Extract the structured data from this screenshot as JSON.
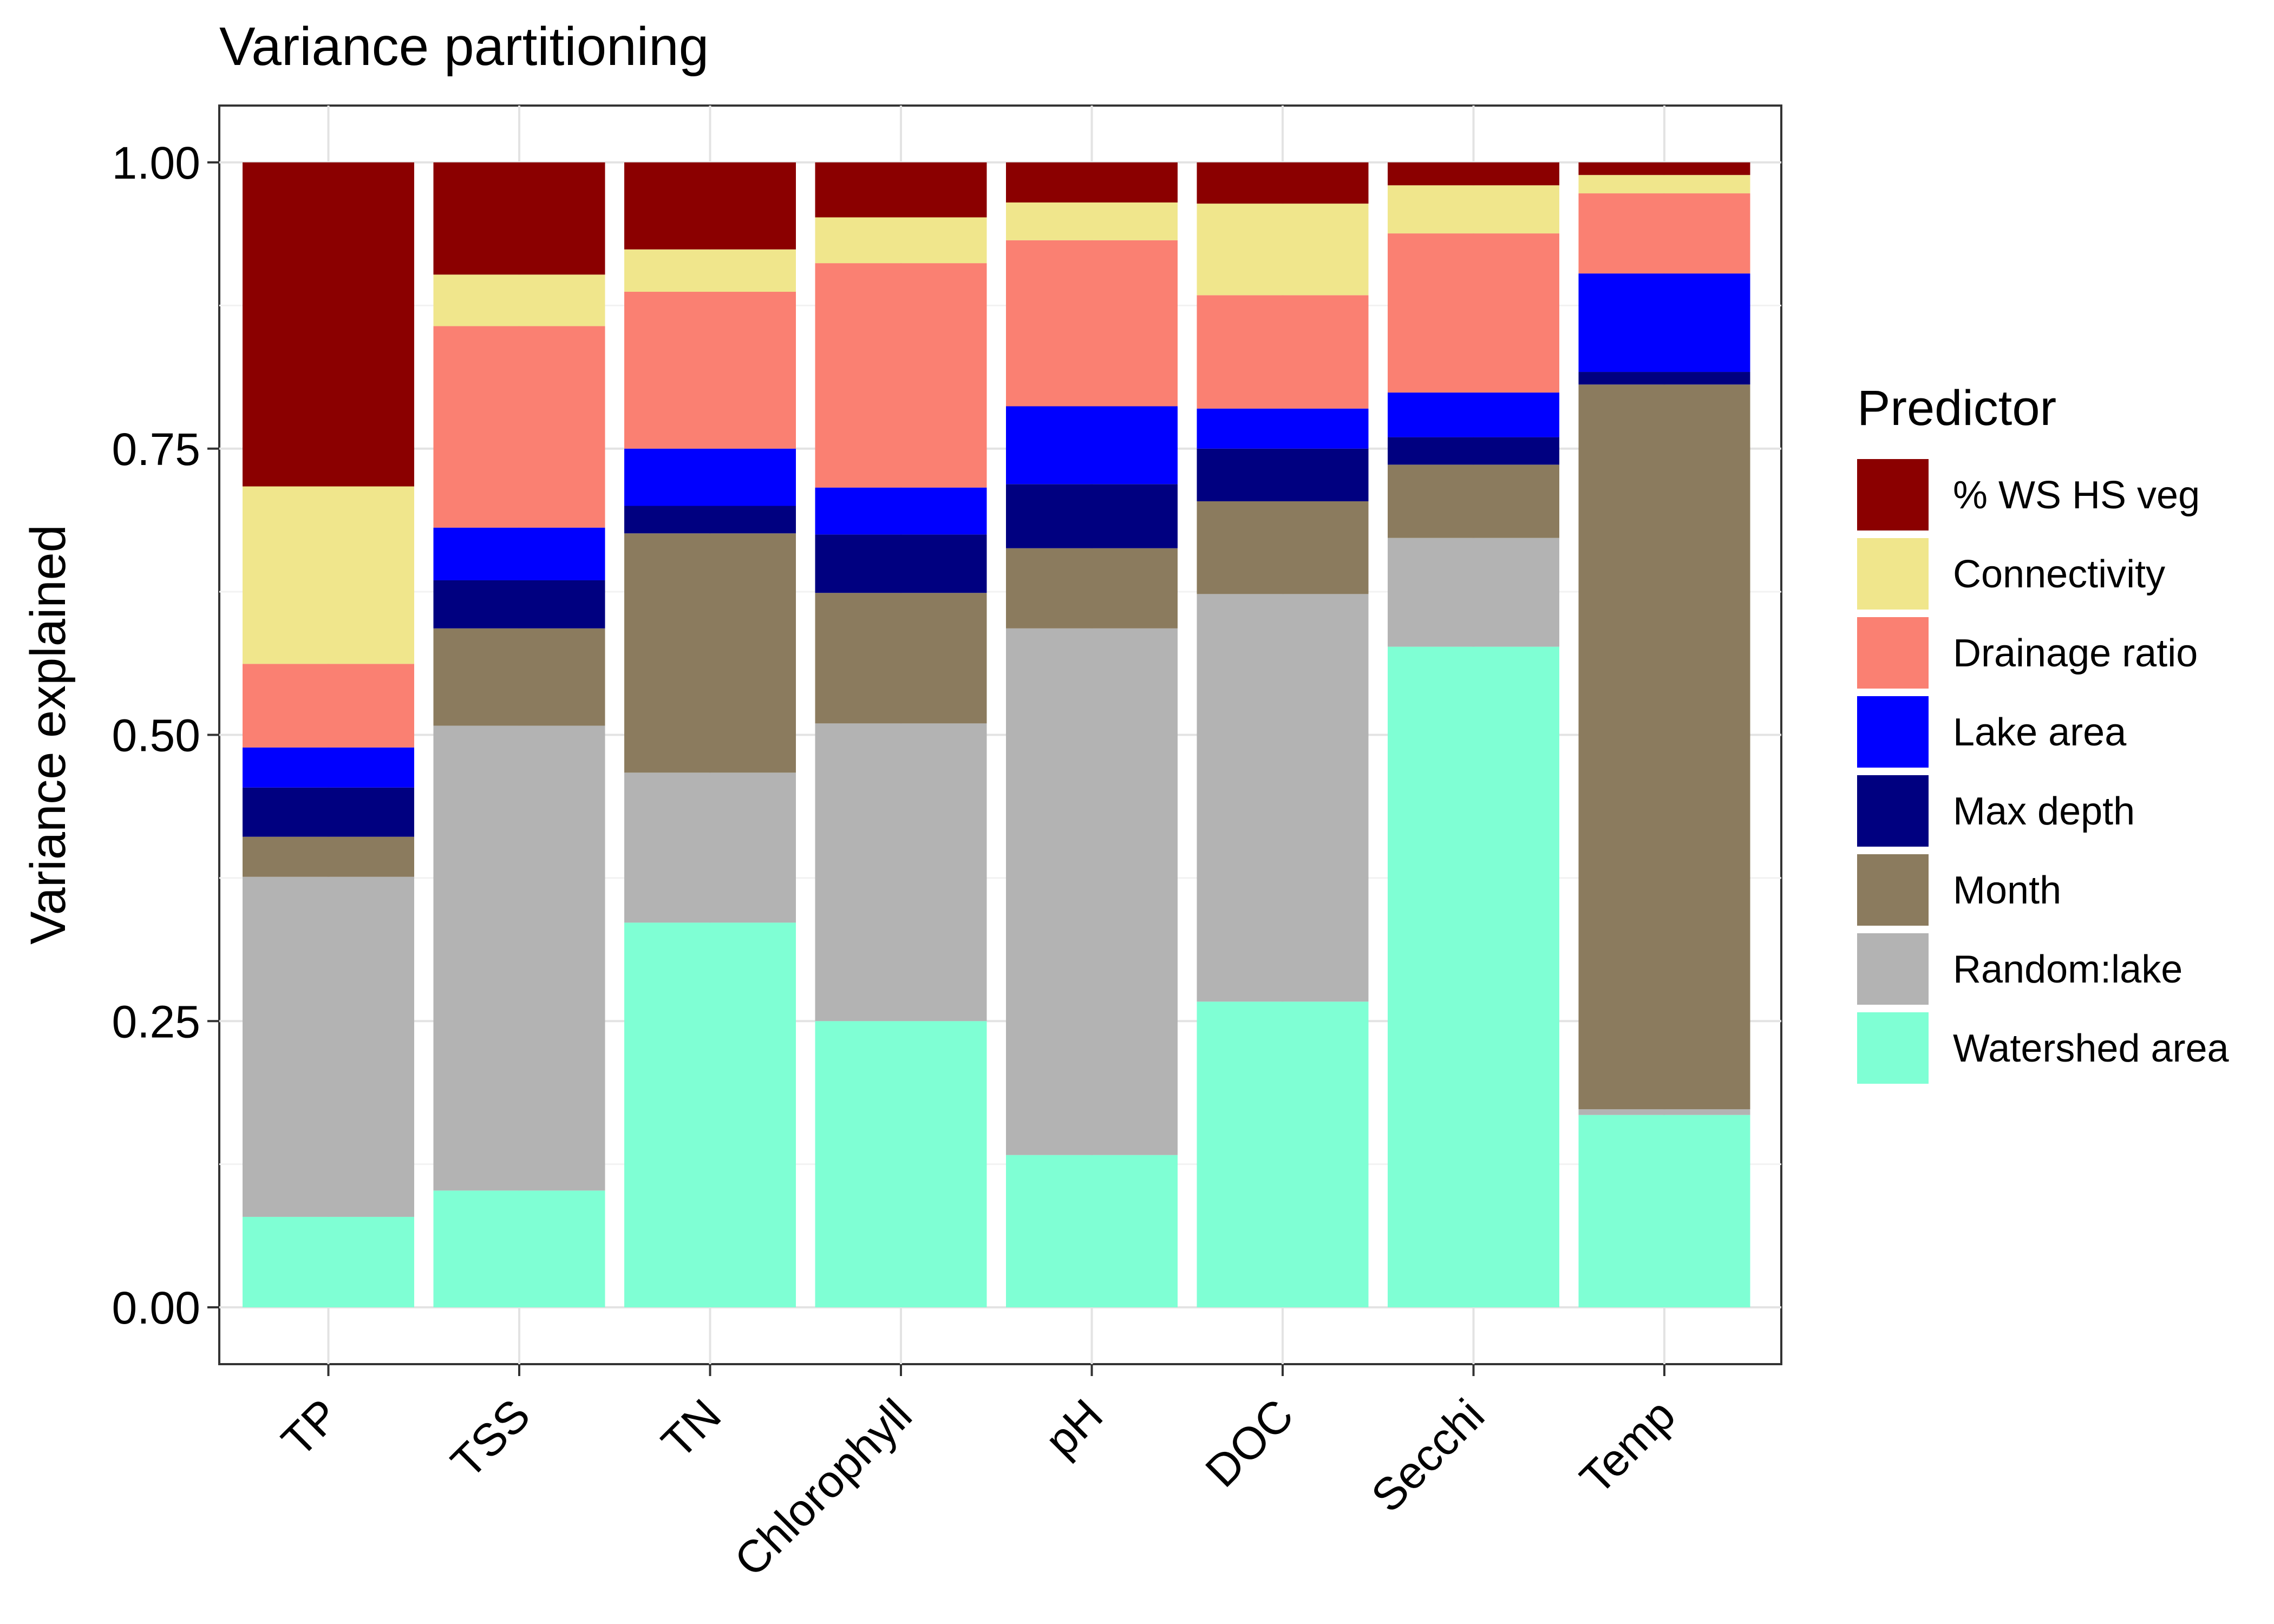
{
  "chart_data": {
    "type": "bar",
    "stacked": true,
    "title": "Variance partitioning",
    "xlabel": "",
    "ylabel": "Variance explained",
    "ylim": [
      0,
      1
    ],
    "yticks": [
      "0.00",
      "0.25",
      "0.50",
      "0.75",
      "1.00"
    ],
    "ytick_values": [
      0,
      0.25,
      0.5,
      0.75,
      1.0
    ],
    "grid": true,
    "legend_position": "right",
    "legend_title": "Predictor",
    "categories": [
      "TP",
      "TSS",
      "TN",
      "Chlorophyll",
      "pH",
      "DOC",
      "Secchi",
      "Temp"
    ],
    "series": [
      {
        "name": "% WS HS veg",
        "color": "#8B0000",
        "values": [
          0.283,
          0.098,
          0.076,
          0.048,
          0.035,
          0.036,
          0.02,
          0.011
        ]
      },
      {
        "name": "Connectivity",
        "color": "#F0E68C",
        "values": [
          0.155,
          0.045,
          0.037,
          0.04,
          0.033,
          0.08,
          0.042,
          0.016
        ]
      },
      {
        "name": "Drainage ratio",
        "color": "#FA8072",
        "values": [
          0.073,
          0.176,
          0.137,
          0.196,
          0.145,
          0.099,
          0.139,
          0.07
        ]
      },
      {
        "name": "Lake area",
        "color": "#0000FF",
        "values": [
          0.035,
          0.046,
          0.05,
          0.041,
          0.068,
          0.035,
          0.039,
          0.086
        ]
      },
      {
        "name": "Max depth",
        "color": "#000080",
        "values": [
          0.043,
          0.042,
          0.024,
          0.051,
          0.056,
          0.046,
          0.024,
          0.011
        ]
      },
      {
        "name": "Month",
        "color": "#8B7B5E",
        "values": [
          0.035,
          0.085,
          0.209,
          0.114,
          0.07,
          0.081,
          0.064,
          0.633
        ]
      },
      {
        "name": "Random:lake",
        "color": "#B3B3B3",
        "values": [
          0.297,
          0.406,
          0.131,
          0.26,
          0.46,
          0.356,
          0.095,
          0.005
        ]
      },
      {
        "name": "Watershed area",
        "color": "#7FFFD4",
        "values": [
          0.079,
          0.102,
          0.336,
          0.25,
          0.133,
          0.267,
          0.577,
          0.168
        ]
      }
    ]
  }
}
